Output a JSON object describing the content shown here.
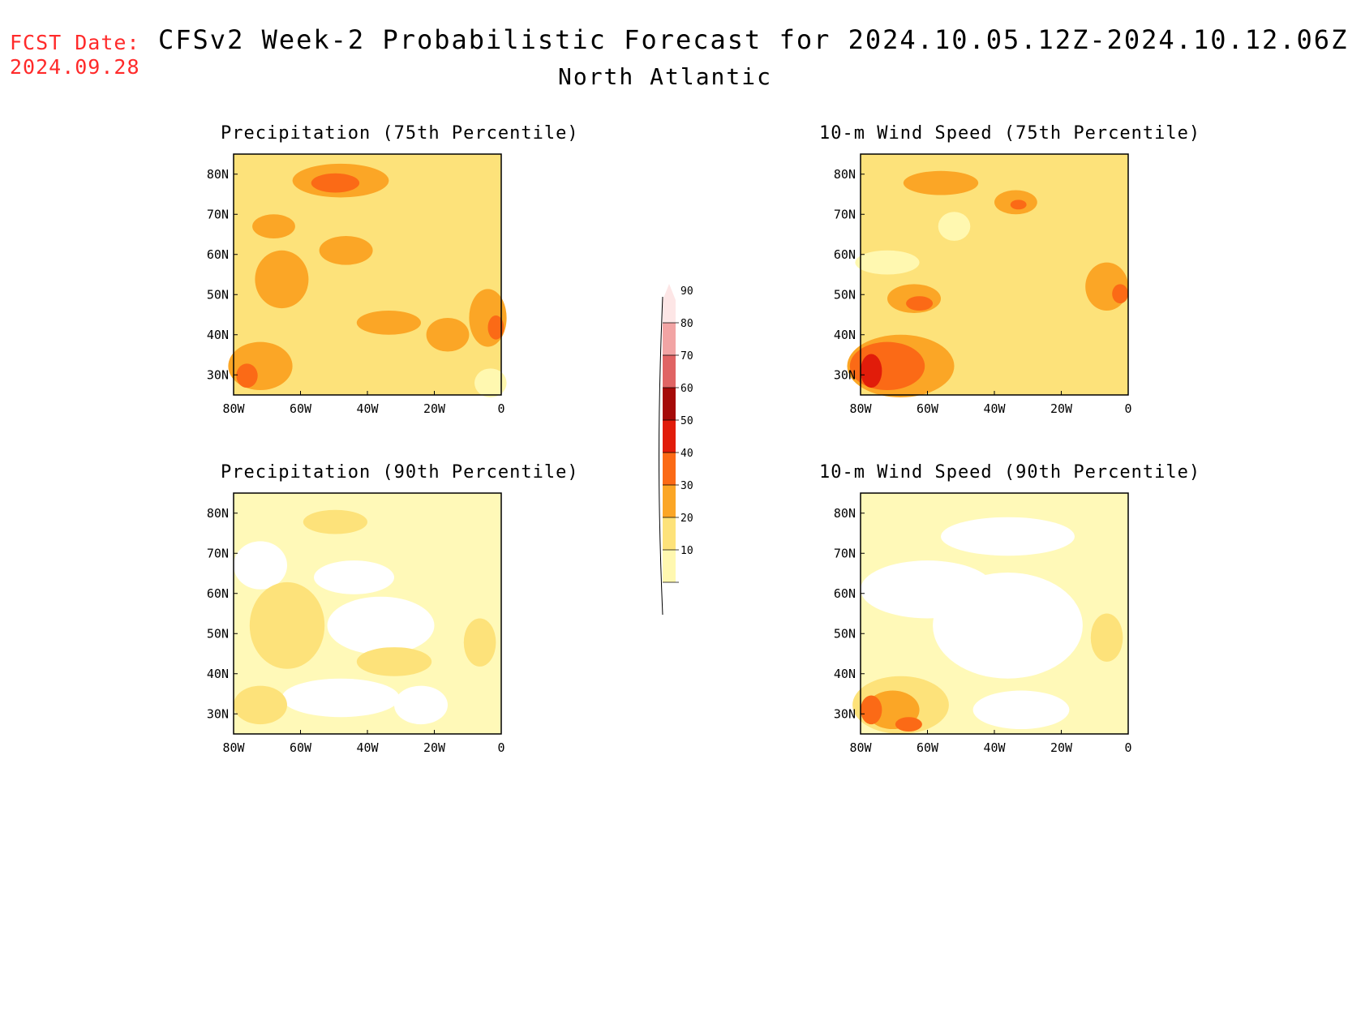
{
  "header": {
    "fcst_label": "FCST Date:",
    "fcst_date": "2024.09.28",
    "title": "CFSv2 Week-2 Probabilistic Forecast for 2024.10.05.12Z-2024.10.12.06Z",
    "subtitle": "North Atlantic"
  },
  "colors": {
    "c10": "#fff8b0",
    "c20": "#fde27a",
    "c30": "#fba626",
    "c40": "#fb6a16",
    "c50": "#e11c0a",
    "c60": "#a50a08",
    "c70": "#e06464",
    "c80": "#f2a4a4",
    "c90": "#fde6e6"
  },
  "axes": {
    "lon_ticks": [
      "80W",
      "60W",
      "40W",
      "20W",
      "0"
    ],
    "lat_ticks": [
      "80N",
      "70N",
      "60N",
      "50N",
      "40N",
      "30N"
    ]
  },
  "colorbar": {
    "levels": [
      "10",
      "20",
      "30",
      "40",
      "50",
      "60",
      "70",
      "80",
      "90"
    ]
  },
  "panels": [
    {
      "id": "precip75",
      "title": "Precipitation (75th Percentile)",
      "base_level": 20
    },
    {
      "id": "wind75",
      "title": "10-m Wind Speed (75th Percentile)",
      "base_level": 20
    },
    {
      "id": "precip90",
      "title": "Precipitation (90th Percentile)",
      "base_level": 10
    },
    {
      "id": "wind90",
      "title": "10-m Wind Speed (90th Percentile)",
      "base_level": 10
    }
  ]
}
